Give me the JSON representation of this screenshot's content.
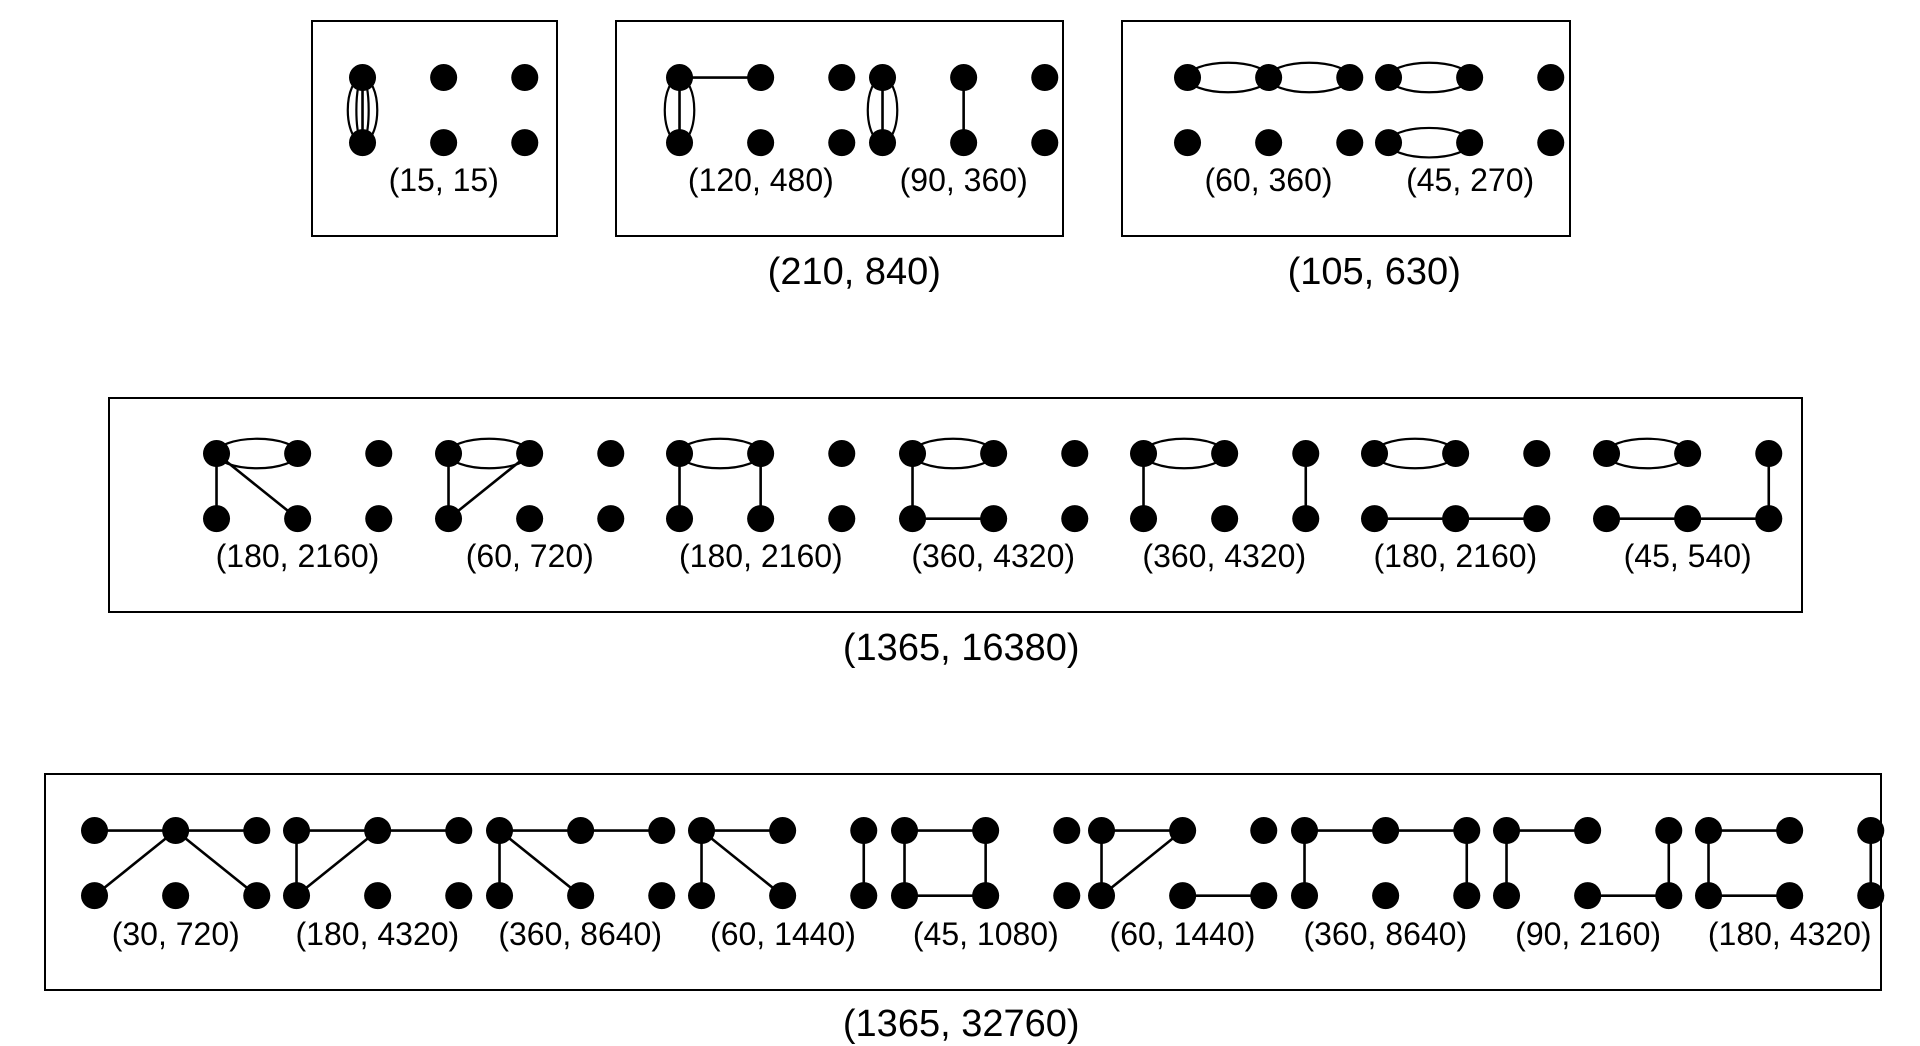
{
  "rows": [
    {
      "groups": [
        {
          "total": "",
          "graphs": [
            {
              "label": "(15, 15)",
              "edges": [
                [
                  0,
                  3,
                  "ell"
                ],
                [
                  0,
                  3,
                  "ell-in"
                ],
                [
                  0,
                  3,
                  "line"
                ]
              ]
            }
          ]
        },
        {
          "total": "(210, 840)",
          "graphs": [
            {
              "label": "(120, 480)",
              "edges": [
                [
                  0,
                  1,
                  "line"
                ],
                [
                  0,
                  3,
                  "ell"
                ],
                [
                  0,
                  3,
                  "line"
                ]
              ]
            },
            {
              "label": "(90, 360)",
              "edges": [
                [
                  0,
                  3,
                  "ell"
                ],
                [
                  0,
                  3,
                  "line"
                ],
                [
                  1,
                  4,
                  "line"
                ]
              ]
            }
          ]
        },
        {
          "total": "(105, 630)",
          "graphs": [
            {
              "label": "(60, 360)",
              "edges": [
                [
                  0,
                  1,
                  "ell"
                ],
                [
                  1,
                  2,
                  "ell"
                ]
              ]
            },
            {
              "label": "(45, 270)",
              "edges": [
                [
                  0,
                  1,
                  "ell"
                ],
                [
                  3,
                  4,
                  "ell"
                ]
              ]
            }
          ]
        }
      ]
    },
    {
      "groups": [
        {
          "total": "(1365, 16380)",
          "graphs": [
            {
              "label": "(180, 2160)",
              "edges": [
                [
                  0,
                  1,
                  "ell"
                ],
                [
                  0,
                  3,
                  "line"
                ],
                [
                  0,
                  4,
                  "line"
                ]
              ]
            },
            {
              "label": "(60, 720)",
              "edges": [
                [
                  0,
                  1,
                  "ell"
                ],
                [
                  0,
                  3,
                  "line"
                ],
                [
                  1,
                  3,
                  "line"
                ]
              ]
            },
            {
              "label": "(180, 2160)",
              "edges": [
                [
                  0,
                  1,
                  "ell"
                ],
                [
                  0,
                  3,
                  "line"
                ],
                [
                  1,
                  4,
                  "line"
                ]
              ]
            },
            {
              "label": "(360, 4320)",
              "edges": [
                [
                  0,
                  1,
                  "ell"
                ],
                [
                  0,
                  3,
                  "line"
                ],
                [
                  3,
                  4,
                  "line"
                ]
              ]
            },
            {
              "label": "(360, 4320)",
              "edges": [
                [
                  0,
                  1,
                  "ell"
                ],
                [
                  0,
                  3,
                  "line"
                ],
                [
                  2,
                  5,
                  "line"
                ]
              ]
            },
            {
              "label": "(180, 2160)",
              "edges": [
                [
                  0,
                  1,
                  "ell"
                ],
                [
                  3,
                  4,
                  "line"
                ],
                [
                  4,
                  5,
                  "line"
                ]
              ]
            },
            {
              "label": "(45, 540)",
              "edges": [
                [
                  0,
                  1,
                  "ell"
                ],
                [
                  2,
                  5,
                  "line"
                ],
                [
                  3,
                  4,
                  "line"
                ],
                [
                  4,
                  5,
                  "line"
                ]
              ]
            }
          ]
        }
      ]
    },
    {
      "groups": [
        {
          "total": "(1365, 32760)",
          "graphs": [
            {
              "label": "(30, 720)",
              "edges": [
                [
                  0,
                  1,
                  "line"
                ],
                [
                  1,
                  2,
                  "line"
                ],
                [
                  1,
                  3,
                  "line"
                ],
                [
                  1,
                  5,
                  "line"
                ]
              ]
            },
            {
              "label": "(180, 4320)",
              "edges": [
                [
                  0,
                  1,
                  "line"
                ],
                [
                  1,
                  2,
                  "line"
                ],
                [
                  0,
                  3,
                  "line"
                ],
                [
                  1,
                  3,
                  "line"
                ]
              ]
            },
            {
              "label": "(360, 8640)",
              "edges": [
                [
                  0,
                  1,
                  "line"
                ],
                [
                  1,
                  2,
                  "line"
                ],
                [
                  0,
                  3,
                  "line"
                ],
                [
                  0,
                  4,
                  "line"
                ]
              ]
            },
            {
              "label": "(60, 1440)",
              "edges": [
                [
                  0,
                  1,
                  "line"
                ],
                [
                  0,
                  3,
                  "line"
                ],
                [
                  0,
                  4,
                  "line"
                ],
                [
                  2,
                  5,
                  "line"
                ]
              ]
            },
            {
              "label": "(45, 1080)",
              "edges": [
                [
                  0,
                  1,
                  "line"
                ],
                [
                  0,
                  3,
                  "line"
                ],
                [
                  1,
                  4,
                  "line"
                ],
                [
                  3,
                  4,
                  "line"
                ]
              ]
            },
            {
              "label": "(60, 1440)",
              "edges": [
                [
                  0,
                  3,
                  "line"
                ],
                [
                  0,
                  1,
                  "line"
                ],
                [
                  1,
                  3,
                  "line"
                ],
                [
                  4,
                  5,
                  "line"
                ]
              ]
            },
            {
              "label": "(360, 8640)",
              "edges": [
                [
                  0,
                  1,
                  "line"
                ],
                [
                  1,
                  2,
                  "line"
                ],
                [
                  0,
                  3,
                  "line"
                ],
                [
                  2,
                  5,
                  "line"
                ]
              ]
            },
            {
              "label": "(90, 2160)",
              "edges": [
                [
                  0,
                  1,
                  "line"
                ],
                [
                  0,
                  3,
                  "line"
                ],
                [
                  2,
                  5,
                  "line"
                ],
                [
                  4,
                  5,
                  "line"
                ]
              ]
            },
            {
              "label": "(180, 4320)",
              "edges": [
                [
                  0,
                  1,
                  "line"
                ],
                [
                  0,
                  3,
                  "line"
                ],
                [
                  3,
                  4,
                  "line"
                ],
                [
                  2,
                  5,
                  "line"
                ]
              ]
            }
          ]
        }
      ]
    }
  ]
}
